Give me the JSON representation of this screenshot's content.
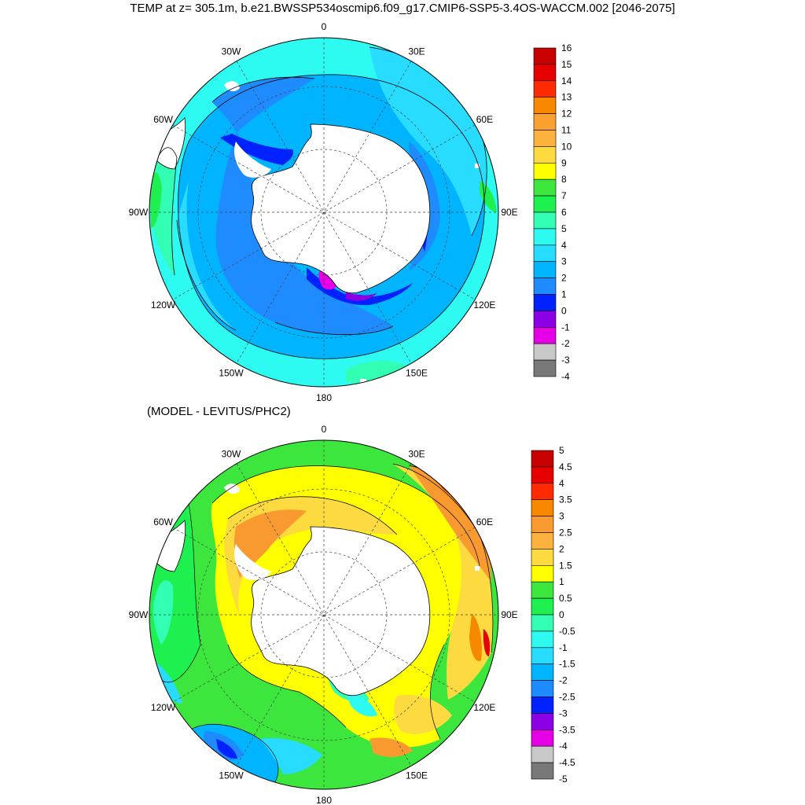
{
  "title": "TEMP at z= 305.1m, b.e21.BWSSP534oscmip6.f09_g17.CMIP6-SSP5-3.4OS-WACCM.002 [2046-2075]",
  "subtitle": "(MODEL - LEVITUS/PHC2)",
  "longitude_labels": [
    "0",
    "30E",
    "60E",
    "90E",
    "120E",
    "150E",
    "180",
    "150W",
    "120W",
    "90W",
    "60W",
    "30W"
  ],
  "colors": {
    "land": "#ffffff",
    "coastline": "#000000",
    "grid": "#444444"
  },
  "maps": [
    {
      "id": "top-map",
      "colorbar": {
        "labels": [
          "16",
          "15",
          "14",
          "13",
          "12",
          "11",
          "10",
          "9",
          "8",
          "7",
          "6",
          "5",
          "4",
          "3",
          "2",
          "1",
          "0",
          "-1",
          "-2",
          "-3",
          "-4"
        ],
        "colors": [
          "#c80000",
          "#e60000",
          "#ff2a00",
          "#f78800",
          "#f9a030",
          "#fcb23c",
          "#fdda40",
          "#ffff00",
          "#3ce63c",
          "#1ef050",
          "#32ffb4",
          "#2dfaf0",
          "#28dcff",
          "#00b4ff",
          "#1e8cff",
          "#0022ff",
          "#8c00e6",
          "#e600e6",
          "#c8c8c8",
          "#787878"
        ]
      }
    },
    {
      "id": "bottom-map",
      "colorbar": {
        "labels": [
          "5",
          "4.5",
          "4",
          "3.5",
          "3",
          "2.5",
          "2",
          "1.5",
          "1",
          "0.5",
          "0",
          "-0.5",
          "-1",
          "-1.5",
          "-2",
          "-2.5",
          "-3",
          "-3.5",
          "-4",
          "-4.5",
          "-5"
        ],
        "colors": [
          "#c80000",
          "#e60000",
          "#ff2a00",
          "#f78800",
          "#f99a30",
          "#fcb23c",
          "#fdda40",
          "#ffff00",
          "#3ce63c",
          "#1ef050",
          "#32ffb4",
          "#2dfaf0",
          "#28dcff",
          "#00b4ff",
          "#1e8cff",
          "#0022ff",
          "#8c00e6",
          "#e600e6",
          "#c8c8c8",
          "#787878"
        ]
      }
    }
  ]
}
